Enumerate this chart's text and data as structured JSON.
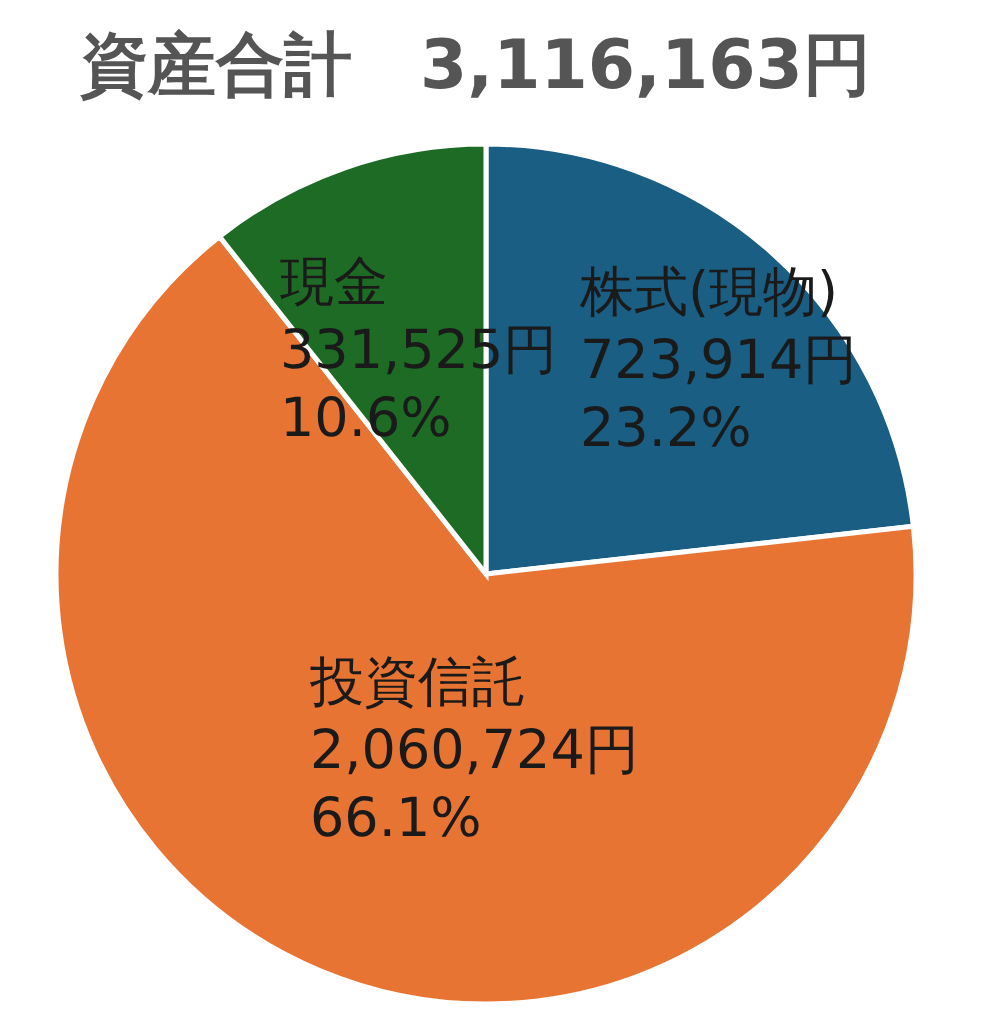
{
  "chart_data": {
    "type": "pie",
    "title": "資産合計　3,116,163円",
    "categories": [
      "株式(現物)",
      "投資信託",
      "現金"
    ],
    "values": [
      723914,
      2060724,
      331525
    ],
    "colors": [
      "#1a5e84",
      "#e87434",
      "#1e6b25"
    ],
    "value_labels": [
      "723,914円\n23.2%",
      "2,060,724円\n66.1%",
      "331,525円\n10.6%"
    ],
    "legend": false
  }
}
